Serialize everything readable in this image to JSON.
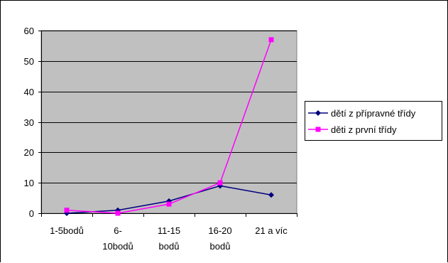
{
  "chart_data": {
    "type": "line",
    "categories": [
      "1-5bodů",
      "6-\n10bodů",
      "11-15\nbodů",
      "16-20\nbodů",
      "21 a víc"
    ],
    "yticks": [
      "0",
      "10",
      "20",
      "30",
      "40",
      "50",
      "60"
    ],
    "ylim": [
      0,
      60
    ],
    "grid": true,
    "legend_position": "right",
    "plot_background": "#c0c0c0",
    "series": [
      {
        "name": "dětí z přípravné třídy",
        "values": [
          0,
          1,
          4,
          9,
          6
        ],
        "color": "#000080",
        "marker": "diamond"
      },
      {
        "name": "děti z první třídy",
        "values": [
          1,
          0,
          3,
          10,
          57
        ],
        "color": "#ff00ff",
        "marker": "square"
      }
    ]
  }
}
